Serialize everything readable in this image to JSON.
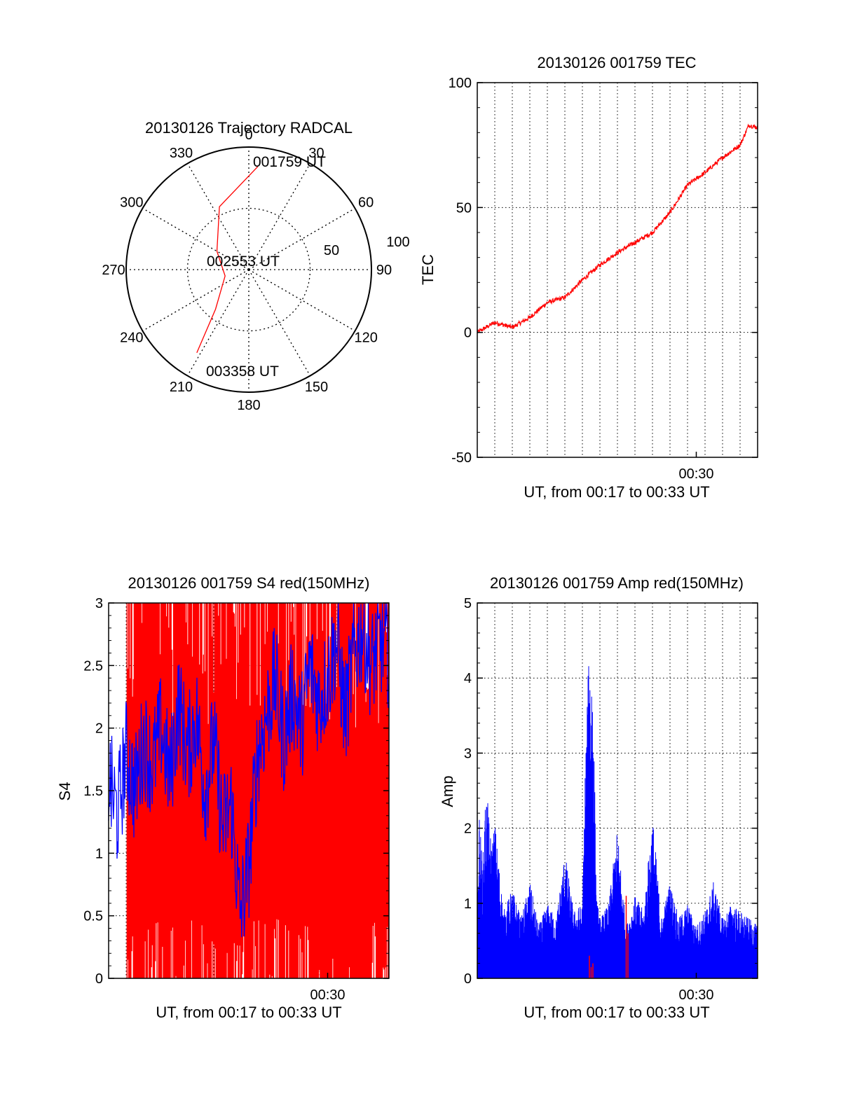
{
  "colors": {
    "red": "#ff0000",
    "blue": "#0000ff",
    "axis": "#000000",
    "grid": "#000000"
  },
  "chart_data": [
    {
      "id": "trajectory",
      "type": "polar",
      "title": "20130126 Trajectory RADCAL",
      "angle_labels": [
        "0",
        "30",
        "60",
        "90",
        "120",
        "150",
        "180",
        "210",
        "240",
        "270",
        "300",
        "330"
      ],
      "radial_labels": [
        "50",
        "100"
      ],
      "grid": true,
      "series": [
        {
          "color": "red",
          "points": [
            {
              "az": 5,
              "el": 14
            },
            {
              "az": 335,
              "el": 39
            },
            {
              "az": 300,
              "el": 63
            },
            {
              "az": 255,
              "el": 72
            },
            {
              "az": 220,
              "el": 52
            },
            {
              "az": 212,
              "el": 18
            }
          ]
        }
      ],
      "annotations": [
        {
          "text": "001759 UT",
          "az": 5,
          "el": 14
        },
        {
          "text": "002553 UT",
          "az": 270,
          "el": 90
        },
        {
          "text": "003358 UT",
          "az": 212,
          "el": 18
        }
      ]
    },
    {
      "id": "tec",
      "type": "line",
      "title": "20130126 001759 TEC",
      "xlabel": "UT, from 00:17 to 00:33 UT",
      "ylabel": "TEC",
      "xlim": [
        0,
        16
      ],
      "ylim": [
        -50,
        100
      ],
      "yticks": [
        "100",
        "50",
        "0",
        "-50"
      ],
      "xticks": [
        {
          "label": "00:30",
          "value": 12.5
        }
      ],
      "grid": true,
      "series": [
        {
          "color": "red",
          "x": [
            0,
            1,
            2,
            3,
            4,
            5,
            6,
            7,
            8,
            9,
            10,
            11,
            12,
            13,
            14,
            15,
            15.5,
            16
          ],
          "y": [
            0,
            4,
            2,
            6,
            12,
            14,
            21,
            27,
            32,
            36,
            40,
            48,
            59,
            64,
            70,
            75,
            83,
            82
          ]
        }
      ]
    },
    {
      "id": "s4",
      "type": "line",
      "title": "20130126 001759 S4 red(150MHz)",
      "xlabel": "UT, from 00:17 to 00:33 UT",
      "ylabel": "S4",
      "xlim": [
        0,
        16
      ],
      "ylim": [
        0,
        3
      ],
      "yticks": [
        "3",
        "2.5",
        "2",
        "1.5",
        "1",
        "0.5",
        "0"
      ],
      "xticks": [
        {
          "label": "00:30",
          "value": 12.5
        }
      ],
      "grid": true,
      "series": [
        {
          "color": "red",
          "style": "dense-noise",
          "min": 0,
          "max": 3
        },
        {
          "color": "blue",
          "x": [
            0,
            0.5,
            1,
            1.5,
            2,
            2.5,
            3,
            3.5,
            4,
            4.5,
            5,
            5.5,
            6,
            6.5,
            7,
            7.5,
            8,
            8.5,
            9,
            9.5,
            10,
            10.5,
            11,
            11.5,
            12,
            12.5,
            13,
            13.5,
            14,
            14.5,
            15,
            15.5,
            16
          ],
          "y": [
            1.6,
            1.3,
            1.8,
            1.5,
            1.9,
            1.7,
            2.0,
            1.6,
            2.2,
            1.8,
            2.1,
            1.5,
            1.9,
            1.2,
            1.4,
            0.5,
            0.9,
            1.8,
            2.1,
            2.4,
            1.9,
            2.3,
            2.0,
            2.5,
            2.2,
            2.4,
            2.7,
            2.1,
            2.6,
            2.8,
            2.5,
            2.7,
            2.6
          ]
        }
      ]
    },
    {
      "id": "amp",
      "type": "line",
      "title": "20130126 001759 Amp red(150MHz)",
      "xlabel": "UT, from 00:17 to 00:33 UT",
      "ylabel": "Amp",
      "xlim": [
        0,
        16
      ],
      "ylim": [
        0,
        5
      ],
      "yticks": [
        "5",
        "4",
        "3",
        "2",
        "1",
        "0"
      ],
      "xticks": [
        {
          "label": "00:30",
          "value": 12.5
        }
      ],
      "grid": true,
      "series": [
        {
          "color": "blue",
          "x": [
            0,
            0.1,
            0.3,
            0.5,
            0.8,
            1,
            1.5,
            2,
            2.5,
            3,
            3.5,
            4,
            4.5,
            5,
            5.5,
            6,
            6.2,
            6.4,
            6.6,
            6.8,
            7,
            7.5,
            8,
            8.5,
            9,
            9.5,
            10,
            10.5,
            11,
            11.5,
            12,
            12.5,
            13,
            13.5,
            14,
            14.5,
            15,
            15.5,
            16
          ],
          "y": [
            0.8,
            2.3,
            1.5,
            2.6,
            1.8,
            2.1,
            0.9,
            1.2,
            0.8,
            1.3,
            0.7,
            1.0,
            0.8,
            1.7,
            0.9,
            1.0,
            3.3,
            4.5,
            4.2,
            1.1,
            0.8,
            1.0,
            2.0,
            0.7,
            1.1,
            0.9,
            2.2,
            0.8,
            1.3,
            0.8,
            1.0,
            0.7,
            0.9,
            1.3,
            0.8,
            1.0,
            0.9,
            0.8,
            0.7
          ]
        },
        {
          "color": "red",
          "x": [
            6.4,
            6.5,
            6.6,
            8.5,
            8.6
          ],
          "y": [
            0.3,
            0.15,
            0.2,
            1.1,
            0.6
          ]
        }
      ]
    }
  ]
}
